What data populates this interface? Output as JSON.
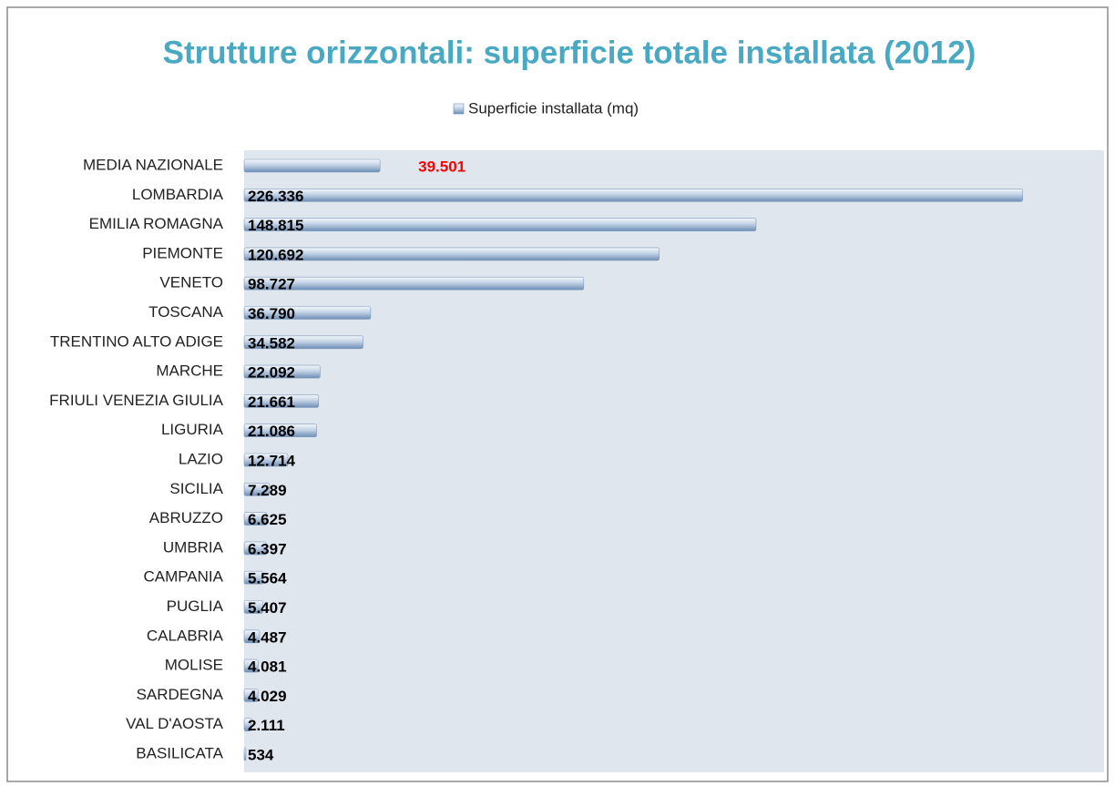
{
  "chart_data": {
    "type": "barh",
    "title": "Strutture orizzontali: superficie totale installata (2012)",
    "categories": [
      "MEDIA NAZIONALE",
      "LOMBARDIA",
      "EMILIA ROMAGNA",
      "PIEMONTE",
      "VENETO",
      "TOSCANA",
      "TRENTINO ALTO ADIGE",
      "MARCHE",
      "FRIULI VENEZIA GIULIA",
      "LIGURIA",
      "LAZIO",
      "SICILIA",
      "ABRUZZO",
      "UMBRIA",
      "CAMPANIA",
      "PUGLIA",
      "CALABRIA",
      "MOLISE",
      "SARDEGNA",
      "VAL D'AOSTA",
      "BASILICATA"
    ],
    "series": [
      {
        "name": "Superficie installata (mq)",
        "color": "#95b3d7",
        "values": [
          39501,
          226336,
          148815,
          120692,
          98727,
          36790,
          34582,
          22092,
          21661,
          21086,
          12714,
          7289,
          6625,
          6397,
          5564,
          5407,
          4487,
          4081,
          4029,
          2111,
          534
        ],
        "value_labels": [
          "39.501",
          "226.336",
          "148.815",
          "120.692",
          "98.727",
          "36.790",
          "34.582",
          "22.092",
          "21.661",
          "21.086",
          "12.714",
          "7.289",
          "6.625",
          "6.397",
          "5.564",
          "5.407",
          "4.487",
          "4.081",
          "4.029",
          "2.111",
          "534"
        ],
        "value_label_colors": [
          "#ff0000",
          "#000000",
          "#000000",
          "#000000",
          "#000000",
          "#000000",
          "#000000",
          "#000000",
          "#000000",
          "#000000",
          "#000000",
          "#000000",
          "#000000",
          "#000000",
          "#000000",
          "#000000",
          "#000000",
          "#000000",
          "#000000",
          "#000000",
          "#000000"
        ]
      }
    ],
    "xlim": [
      0,
      250000
    ],
    "legend": "top"
  }
}
